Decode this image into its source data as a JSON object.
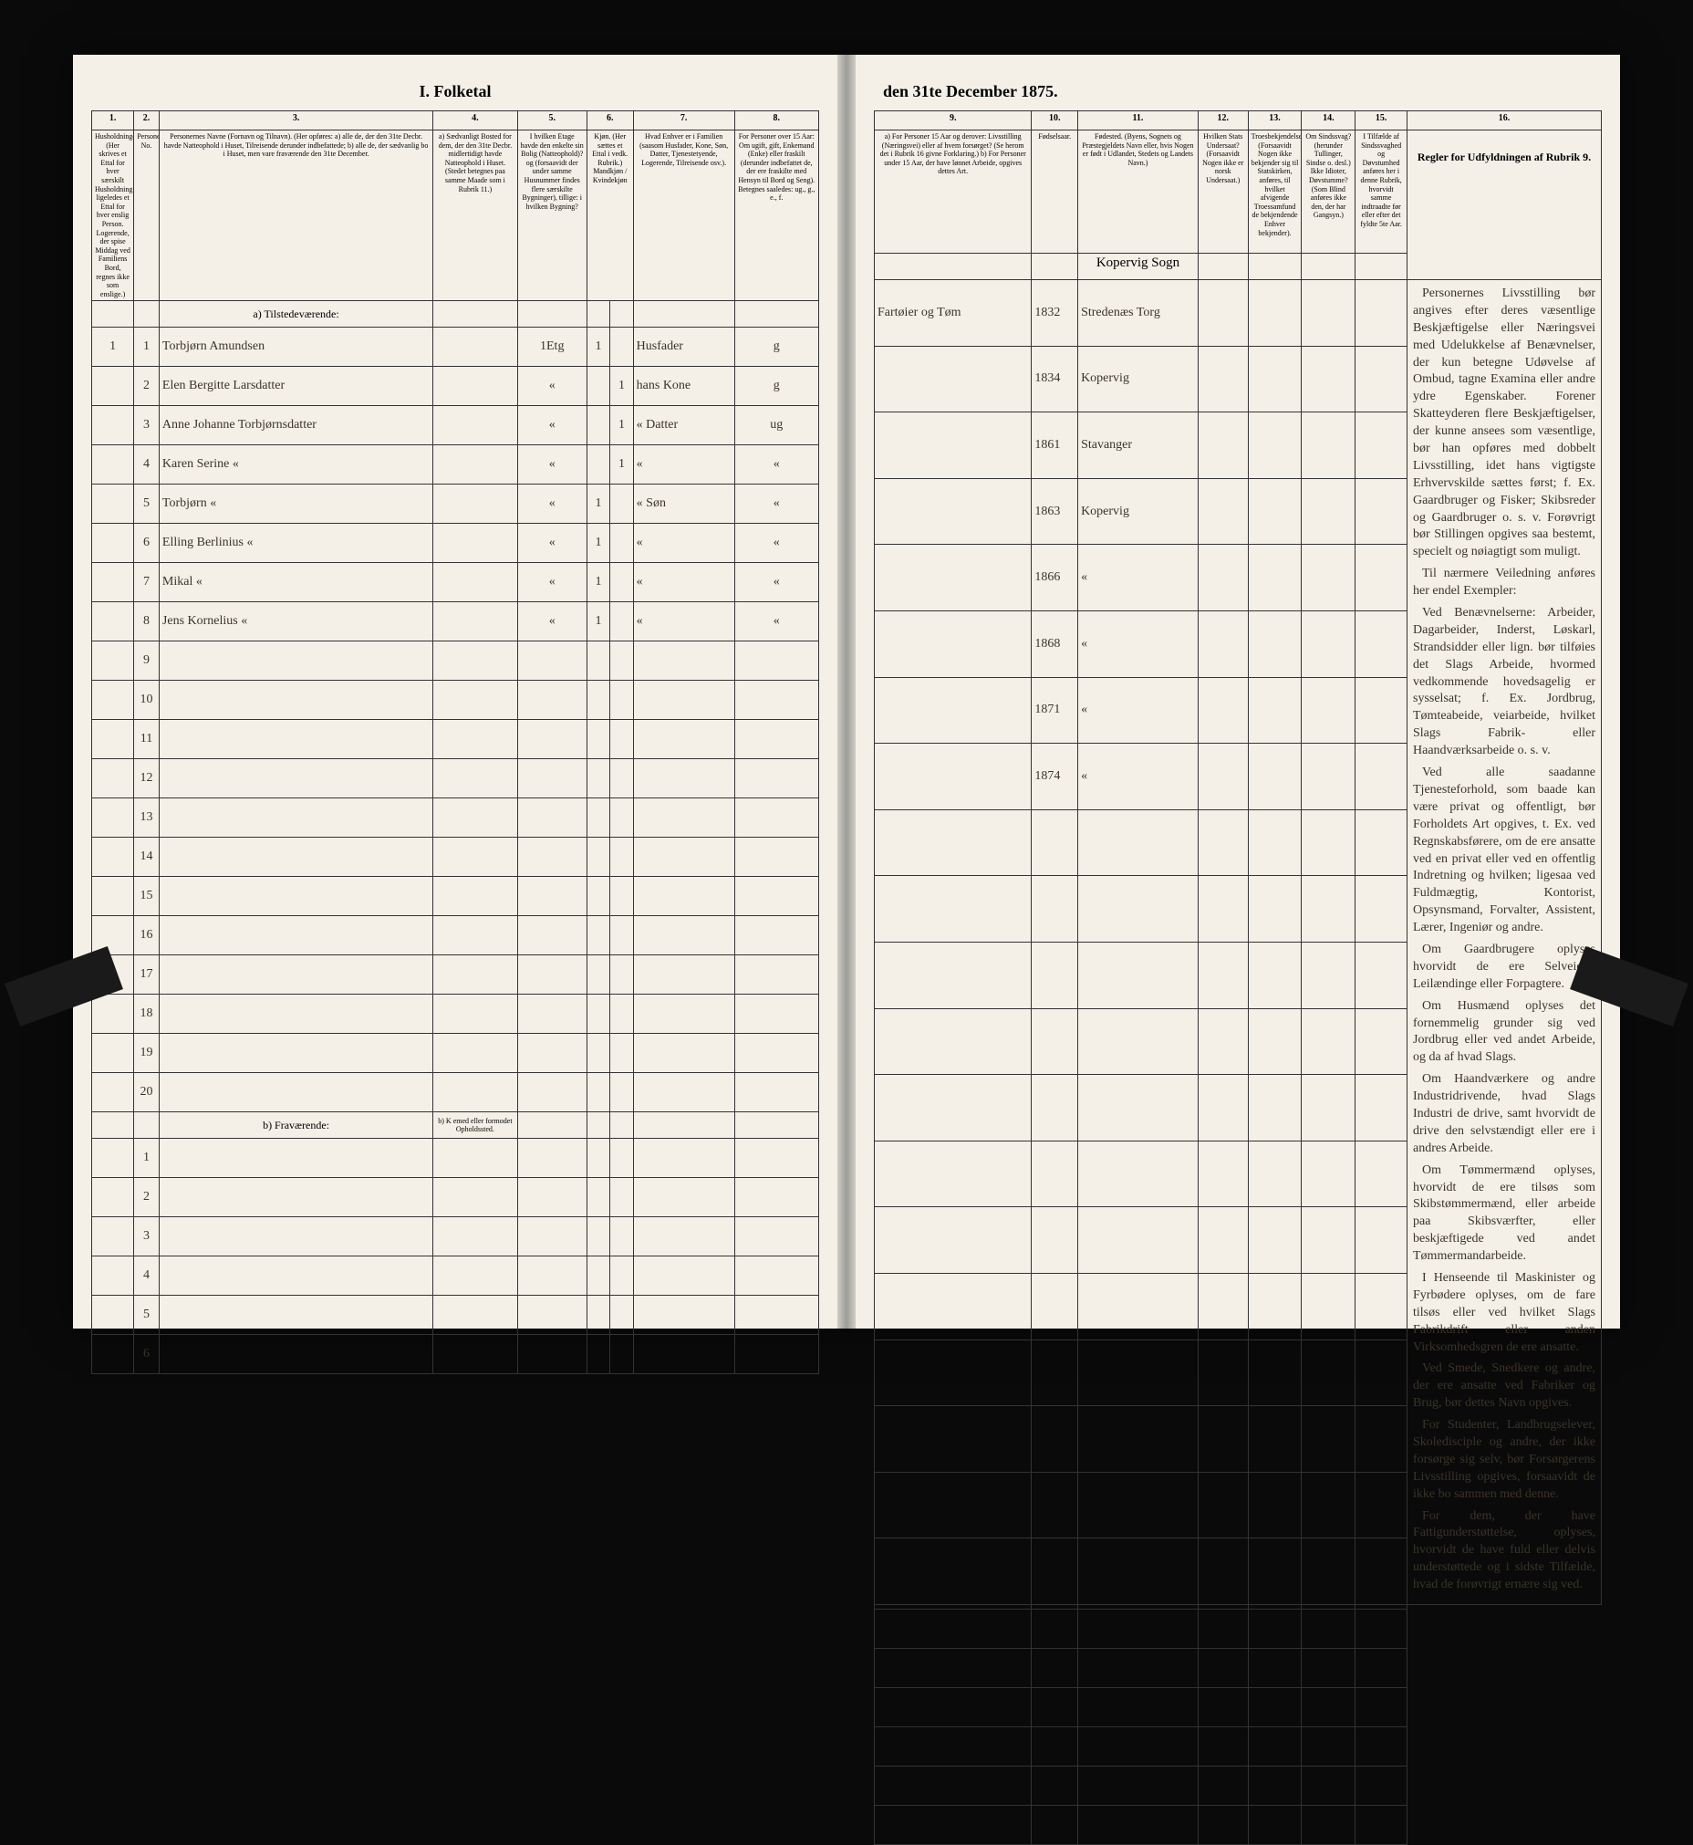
{
  "title_left": "I. Folketal",
  "title_right": "den 31te December 1875.",
  "col_numbers": [
    "1.",
    "2.",
    "3.",
    "4.",
    "5.",
    "6.",
    "7.",
    "8.",
    "9.",
    "10.",
    "11.",
    "12.",
    "13.",
    "14.",
    "15.",
    "16."
  ],
  "headers": {
    "c1": "Husholdninger. (Her skrives et Ettal for hver særskilt Husholdning; ligeledes et Ettal for hver enslig Person. Logerende, der spise Middag ved Familiens Bord, regnes ikke som enslige.)",
    "c2": "Personernes No.",
    "c3": "Personernes Navne (Fornavn og Tilnavn). (Her opføres: a) alle de, der den 31te Decbr. havde Natteophold i Huset, Tilreisende derunder indbefattede; b) alle de, der sædvanlig bo i Huset, men vare fraværende den 31te December.",
    "c4": "a) Sædvanligt Bosted for dem, der den 31te Decbr. midlertidigt havde Natteophold i Huset. (Stedet betegnes paa samme Maade som i Rubrik 11.)",
    "c5": "I hvilken Etage havde den enkelte sin Bolig (Natteophold)? og (forsaavidt der under samme Husnummer findes flere særskilte Bygninger), tillige: i hvilken Bygning?",
    "c6": "Kjøn. (Her sættes et Ettal i vedk. Rubrik.) Mandkjøn / Kvindekjøn",
    "c7": "Hvad Enhver er i Familien (saasom Husfader, Kone, Søn, Datter, Tjenestetyende, Logerende, Tilreisende osv.).",
    "c8": "For Personer over 15 Aar: Om ugift, gift, Enkemand (Enke) eller fraskilt (derunder indbefattet de, der ere fraskilte med Hensyn til Bord og Seng). Betegnes saaledes: ug., g., e., f.",
    "c9": "a) For Personer 15 Aar og derover: Livsstilling (Næringsvei) eller af hvem forsørget? (Se herom det i Rubrik 16 givne Forklaring.) b) For Personer under 15 Aar, der have lønnet Arbeide, opgives dettes Art.",
    "c10": "Fødselsaar.",
    "c11": "Fødested. (Byens, Sognets og Præstegjeldets Navn eller, hvis Nogen er født i Udlandet, Stedets og Landets Navn.)",
    "c12": "Hvilken Stats Undersaat? (Forsaavidt Nogen ikke er norsk Undersaat.)",
    "c13": "Troesbekjendelse. (Forsaavidt Nogen ikke bekjender sig til Statskirken, anføres, til hvilket afvigende Troessamfund de bekjendende Enhver bekjender).",
    "c14": "Om Sindssvag? (herunder Tullinger, Sindse o. desl.) Ikke Idioter, Døvstumme? (Som Blind anføres ikke den, der har Gangsyn.)",
    "c15": "I Tilfælde af Sindssvaghed og Døvstumhed anføres her i denne Rubrik, hvorvidt samme indtraadte før eller efter det fyldte 5te Aar.",
    "c16_title": "Regler for Udfyldningen af Rubrik 9."
  },
  "section_a": "a) Tilstedeværende:",
  "section_b": "b) Fraværende:",
  "section_b_note": "b) K emed eller formodet Opholdssted.",
  "household_no": "1",
  "parish_header": "Kopervig Sogn",
  "rows": [
    {
      "n": "1",
      "name": "Torbjørn Amundsen",
      "c4": "",
      "c5": "1Etg",
      "c6a": "1",
      "c6b": "",
      "c7": "Husfader",
      "c8": "g",
      "c9": "Fartøier og Tøm",
      "c10": "1832",
      "c11": "Stredenæs Torg"
    },
    {
      "n": "2",
      "name": "Elen Bergitte Larsdatter",
      "c4": "",
      "c5": "«",
      "c6a": "",
      "c6b": "1",
      "c7": "hans Kone",
      "c8": "g",
      "c9": "",
      "c10": "1834",
      "c11": "Kopervig"
    },
    {
      "n": "3",
      "name": "Anne Johanne Torbjørnsdatter",
      "c4": "",
      "c5": "«",
      "c6a": "",
      "c6b": "1",
      "c7": "« Datter",
      "c8": "ug",
      "c9": "",
      "c10": "1861",
      "c11": "Stavanger"
    },
    {
      "n": "4",
      "name": "Karen Serine «",
      "c4": "",
      "c5": "«",
      "c6a": "",
      "c6b": "1",
      "c7": "«",
      "c8": "«",
      "c9": "",
      "c10": "1863",
      "c11": "Kopervig"
    },
    {
      "n": "5",
      "name": "Torbjørn «",
      "c4": "",
      "c5": "«",
      "c6a": "1",
      "c6b": "",
      "c7": "« Søn",
      "c8": "«",
      "c9": "",
      "c10": "1866",
      "c11": "«"
    },
    {
      "n": "6",
      "name": "Elling Berlinius «",
      "c4": "",
      "c5": "«",
      "c6a": "1",
      "c6b": "",
      "c7": "«",
      "c8": "«",
      "c9": "",
      "c10": "1868",
      "c11": "«"
    },
    {
      "n": "7",
      "name": "Mikal «",
      "c4": "",
      "c5": "«",
      "c6a": "1",
      "c6b": "",
      "c7": "«",
      "c8": "«",
      "c9": "",
      "c10": "1871",
      "c11": "«"
    },
    {
      "n": "8",
      "name": "Jens Kornelius «",
      "c4": "",
      "c5": "«",
      "c6a": "1",
      "c6b": "",
      "c7": "«",
      "c8": "«",
      "c9": "",
      "c10": "1874",
      "c11": "«"
    }
  ],
  "empty_rows_a": [
    "9",
    "10",
    "11",
    "12",
    "13",
    "14",
    "15",
    "16",
    "17",
    "18",
    "19",
    "20"
  ],
  "empty_rows_b": [
    "1",
    "2",
    "3",
    "4",
    "5",
    "6"
  ],
  "instructions": [
    "Personernes Livsstilling bør angives efter deres væsentlige Beskjæftigelse eller Næringsvei med Udelukkelse af Benævnelser, der kun betegne Udøvelse af Ombud, tagne Examina eller andre ydre Egenskaber. Forener Skatteyderen flere Beskjæftigelser, der kunne ansees som væsentlige, bør han opføres med dobbelt Livsstilling, idet hans vigtigste Erhvervskilde sættes først; f. Ex. Gaardbruger og Fisker; Skibsreder og Gaardbruger o. s. v. Forøvrigt bør Stillingen opgives saa bestemt, specielt og nøiagtigt som muligt.",
    "Til nærmere Veiledning anføres her endel Exempler:",
    "Ved Benævnelserne: Arbeider, Dagarbeider, Inderst, Løskarl, Strandsidder eller lign. bør tilføies det Slags Arbeide, hvormed vedkommende hovedsagelig er sysselsat; f. Ex. Jordbrug, Tømteabeide, veiarbeide, hvilket Slags Fabrik- eller Haandværksarbeide o. s. v.",
    "Ved alle saadanne Tjenesteforhold, som baade kan være privat og offentligt, bør Forholdets Art opgives, t. Ex. ved Regnskabsførere, om de ere ansatte ved en privat eller ved en offentlig Indretning og hvilken; ligesaa ved Fuldmægtig, Kontorist, Opsynsmand, Forvalter, Assistent, Lærer, Ingeniør og andre.",
    "Om Gaardbrugere oplyses hvorvidt de ere Selveiere, Leilændinge eller Forpagtere.",
    "Om Husmænd oplyses det fornemmelig grunder sig ved Jordbrug eller ved andet Arbeide, og da af hvad Slags.",
    "Om Haandværkere og andre Industridrivende, hvad Slags Industri de drive, samt hvorvidt de drive den selvstændigt eller ere i andres Arbeide.",
    "Om Tømmermænd oplyses, hvorvidt de ere tilsøs som Skibstømmermænd, eller arbeide paa Skibsværfter, eller beskjæftigede ved andet Tømmermandarbeide.",
    "I Henseende til Maskinister og Fyrbødere oplyses, om de fare tilsøs eller ved hvilket Slags Fabrikdrift eller anden Virksomhedsgren de ere ansatte.",
    "Ved Smede, Snedkere og andre, der ere ansatte ved Fabriker og Brug, bør dettes Navn opgives.",
    "For Studenter, Landbrugselever, Skoledisciple og andre, der ikke forsørge sig selv, bør Forsørgerens Livsstilling opgives, forsaavidt de ikke bo sammen med denne.",
    "For dem, der have Fattigunderstøttelse, oplyses, hvorvidt de have fuld eller delvis understøttede og i sidste Tilfælde, hvad de forøvrigt ernære sig ved."
  ],
  "colors": {
    "paper": "#f4f0e8",
    "ink": "#1a1a1a",
    "handwriting": "#3a3428",
    "background": "#0a0a0a"
  },
  "col_widths_left": {
    "c1": 40,
    "c2": 24,
    "c3": 260,
    "c4": 80,
    "c5": 66,
    "c6a": 22,
    "c6b": 22,
    "c7": 96,
    "c8": 80
  },
  "col_widths_right": {
    "c9": 170,
    "c10": 50,
    "c11": 130,
    "c12": 54,
    "c13": 58,
    "c14": 58,
    "c15": 56,
    "c16": 210
  }
}
